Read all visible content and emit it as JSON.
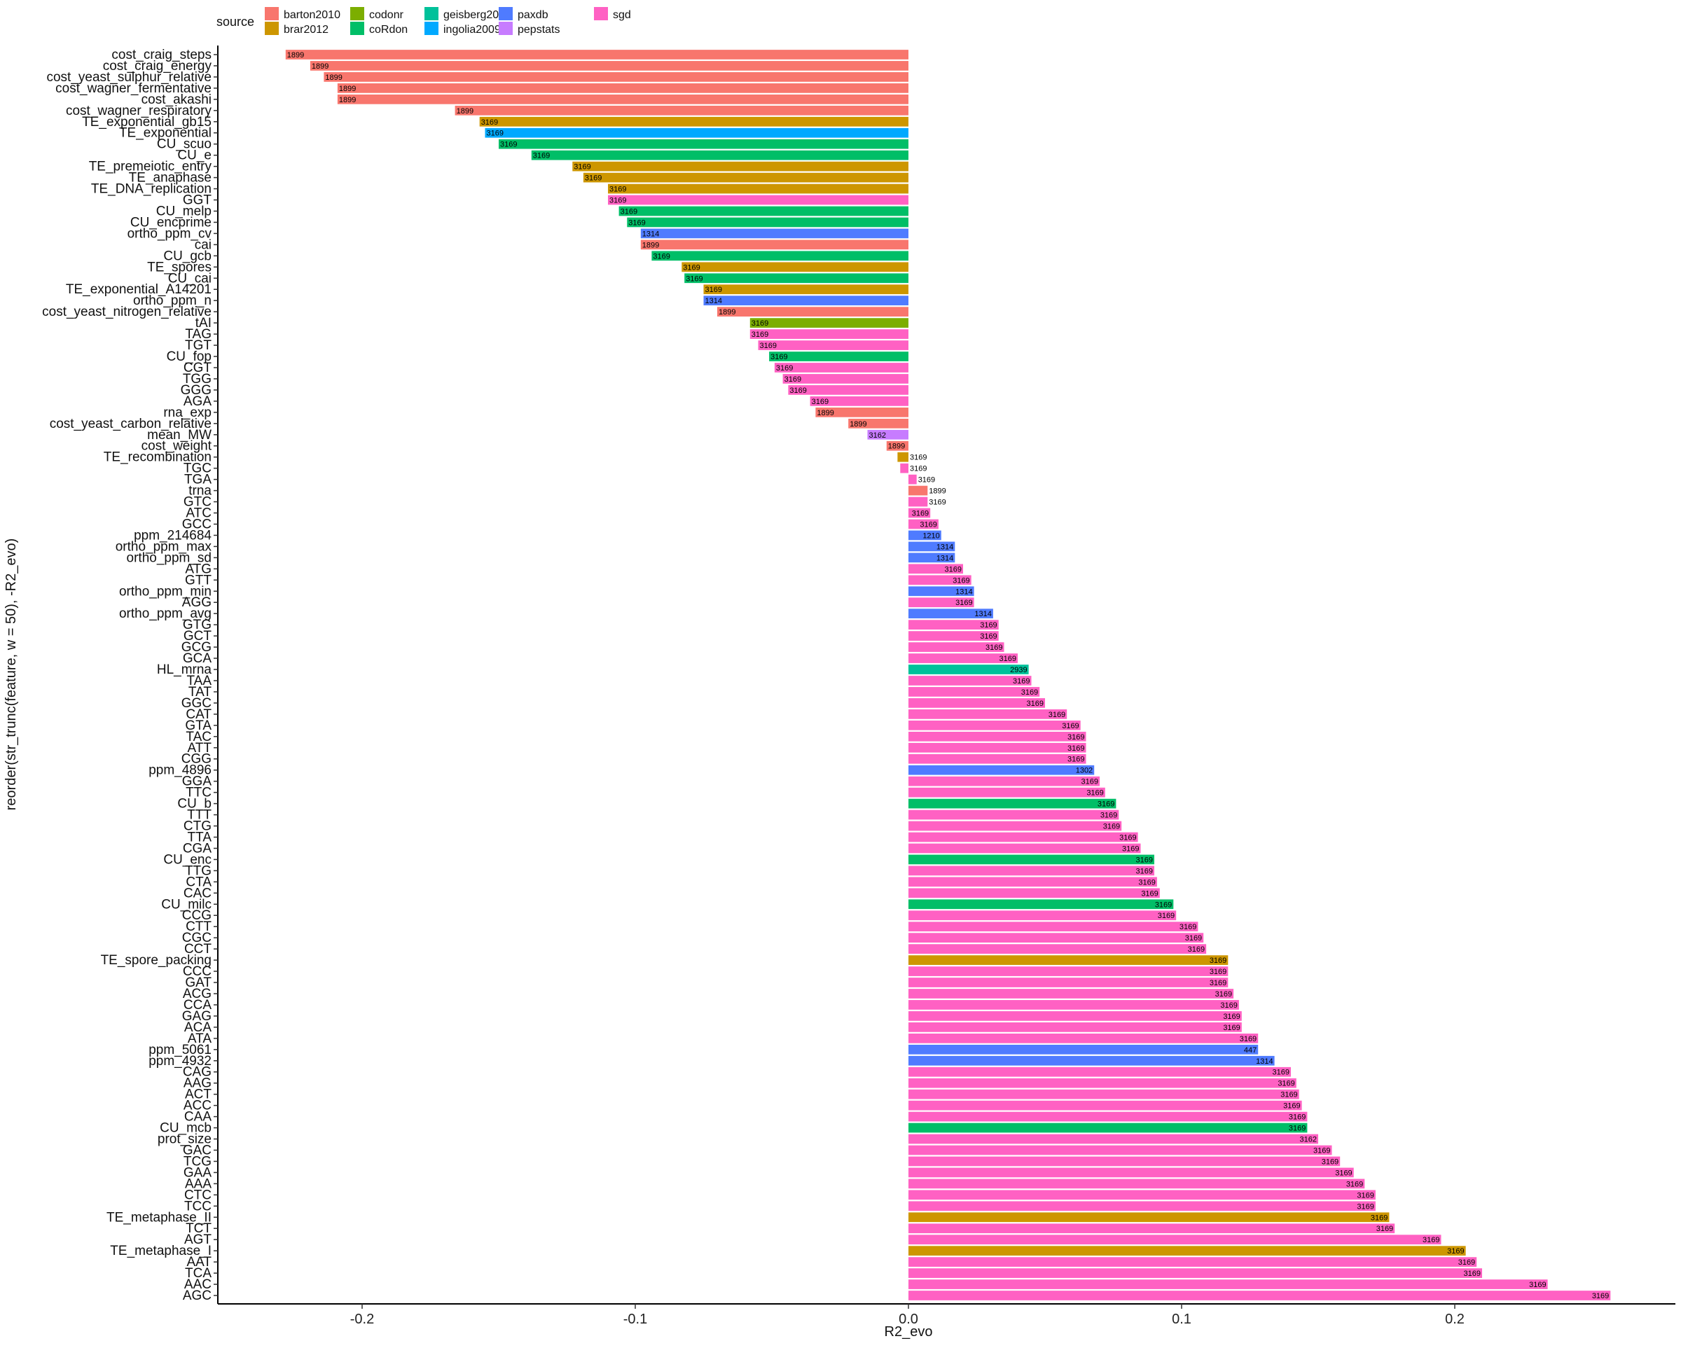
{
  "chart_data": {
    "type": "bar",
    "orientation": "horizontal",
    "xlabel": "R2_evo",
    "ylabel": "reorder(str_trunc(feature, w = 50), -R2_evo)",
    "xlim": [
      -0.25,
      0.28
    ],
    "xticks": [
      -0.2,
      -0.1,
      0.0,
      0.1,
      0.2
    ],
    "xtick_labels": [
      "-0.2",
      "-0.1",
      "0.0",
      "0.1",
      "0.2"
    ],
    "grid": false,
    "legend": {
      "title": "source",
      "position": "top-left",
      "entries": [
        {
          "name": "barton2010",
          "color": "#F8766D"
        },
        {
          "name": "brar2012",
          "color": "#CD9600"
        },
        {
          "name": "codonr",
          "color": "#7CAE00"
        },
        {
          "name": "coRdon",
          "color": "#00BE67"
        },
        {
          "name": "geisberg2014",
          "color": "#00C19A"
        },
        {
          "name": "ingolia2009",
          "color": "#00A9FF"
        },
        {
          "name": "paxdb",
          "color": "#4F7BFF"
        },
        {
          "name": "pepstats",
          "color": "#C77CFF"
        },
        {
          "name": "sgd",
          "color": "#FF61C3"
        }
      ]
    },
    "bars": [
      {
        "feature": "cost_craig_steps",
        "value": -0.228,
        "n": "1899",
        "source": "barton2010"
      },
      {
        "feature": "cost_craig_energy",
        "value": -0.219,
        "n": "1899",
        "source": "barton2010"
      },
      {
        "feature": "cost_yeast_sulphur_relative",
        "value": -0.214,
        "n": "1899",
        "source": "barton2010"
      },
      {
        "feature": "cost_wagner_fermentative",
        "value": -0.209,
        "n": "1899",
        "source": "barton2010"
      },
      {
        "feature": "cost_akashi",
        "value": -0.209,
        "n": "1899",
        "source": "barton2010"
      },
      {
        "feature": "cost_wagner_respiratory",
        "value": -0.166,
        "n": "1899",
        "source": "barton2010"
      },
      {
        "feature": "TE_exponential_gb15",
        "value": -0.157,
        "n": "3169",
        "source": "brar2012"
      },
      {
        "feature": "TE_exponential",
        "value": -0.155,
        "n": "3169",
        "source": "ingolia2009"
      },
      {
        "feature": "CU_scuo",
        "value": -0.15,
        "n": "3169",
        "source": "coRdon"
      },
      {
        "feature": "CU_e",
        "value": -0.138,
        "n": "3169",
        "source": "coRdon"
      },
      {
        "feature": "TE_premeiotic_entry",
        "value": -0.123,
        "n": "3169",
        "source": "brar2012"
      },
      {
        "feature": "TE_anaphase",
        "value": -0.119,
        "n": "3169",
        "source": "brar2012"
      },
      {
        "feature": "TE_DNA_replication",
        "value": -0.11,
        "n": "3169",
        "source": "brar2012"
      },
      {
        "feature": "GGT",
        "value": -0.11,
        "n": "3169",
        "source": "sgd"
      },
      {
        "feature": "CU_melp",
        "value": -0.106,
        "n": "3169",
        "source": "coRdon"
      },
      {
        "feature": "CU_encprime",
        "value": -0.103,
        "n": "3169",
        "source": "coRdon"
      },
      {
        "feature": "ortho_ppm_cv",
        "value": -0.098,
        "n": "1314",
        "source": "paxdb"
      },
      {
        "feature": "cai",
        "value": -0.098,
        "n": "1899",
        "source": "barton2010"
      },
      {
        "feature": "CU_gcb",
        "value": -0.094,
        "n": "3169",
        "source": "coRdon"
      },
      {
        "feature": "TE_spores",
        "value": -0.083,
        "n": "3169",
        "source": "brar2012"
      },
      {
        "feature": "CU_cai",
        "value": -0.082,
        "n": "3169",
        "source": "coRdon"
      },
      {
        "feature": "TE_exponential_A14201",
        "value": -0.075,
        "n": "3169",
        "source": "brar2012"
      },
      {
        "feature": "ortho_ppm_n",
        "value": -0.075,
        "n": "1314",
        "source": "paxdb"
      },
      {
        "feature": "cost_yeast_nitrogen_relative",
        "value": -0.07,
        "n": "1899",
        "source": "barton2010"
      },
      {
        "feature": "tAI",
        "value": -0.058,
        "n": "3169",
        "source": "codonr"
      },
      {
        "feature": "TAG",
        "value": -0.058,
        "n": "3169",
        "source": "sgd"
      },
      {
        "feature": "TGT",
        "value": -0.055,
        "n": "3169",
        "source": "sgd"
      },
      {
        "feature": "CU_fop",
        "value": -0.051,
        "n": "3169",
        "source": "coRdon"
      },
      {
        "feature": "CGT",
        "value": -0.049,
        "n": "3169",
        "source": "sgd"
      },
      {
        "feature": "TGG",
        "value": -0.046,
        "n": "3169",
        "source": "sgd"
      },
      {
        "feature": "GGG",
        "value": -0.044,
        "n": "3169",
        "source": "sgd"
      },
      {
        "feature": "AGA",
        "value": -0.036,
        "n": "3169",
        "source": "sgd"
      },
      {
        "feature": "rna_exp",
        "value": -0.034,
        "n": "1899",
        "source": "barton2010"
      },
      {
        "feature": "cost_yeast_carbon_relative",
        "value": -0.022,
        "n": "1899",
        "source": "barton2010"
      },
      {
        "feature": "mean_MW",
        "value": -0.015,
        "n": "3162",
        "source": "pepstats"
      },
      {
        "feature": "cost_weight",
        "value": -0.008,
        "n": "1899",
        "source": "barton2010"
      },
      {
        "feature": "TE_recombination",
        "value": -0.004,
        "n": "3169",
        "source": "brar2012"
      },
      {
        "feature": "TGC",
        "value": -0.003,
        "n": "3169",
        "source": "sgd"
      },
      {
        "feature": "TGA",
        "value": 0.003,
        "n": "3169",
        "source": "sgd"
      },
      {
        "feature": "trna",
        "value": 0.007,
        "n": "1899",
        "source": "barton2010"
      },
      {
        "feature": "GTC",
        "value": 0.007,
        "n": "3169",
        "source": "sgd"
      },
      {
        "feature": "ATC",
        "value": 0.008,
        "n": "3169",
        "source": "sgd"
      },
      {
        "feature": "GCC",
        "value": 0.011,
        "n": "3169",
        "source": "sgd"
      },
      {
        "feature": "ppm_214684",
        "value": 0.012,
        "n": "1210",
        "source": "paxdb"
      },
      {
        "feature": "ortho_ppm_max",
        "value": 0.017,
        "n": "1314",
        "source": "paxdb"
      },
      {
        "feature": "ortho_ppm_sd",
        "value": 0.017,
        "n": "1314",
        "source": "paxdb"
      },
      {
        "feature": "ATG",
        "value": 0.02,
        "n": "3169",
        "source": "sgd"
      },
      {
        "feature": "GTT",
        "value": 0.023,
        "n": "3169",
        "source": "sgd"
      },
      {
        "feature": "ortho_ppm_min",
        "value": 0.024,
        "n": "1314",
        "source": "paxdb"
      },
      {
        "feature": "AGG",
        "value": 0.024,
        "n": "3169",
        "source": "sgd"
      },
      {
        "feature": "ortho_ppm_avg",
        "value": 0.031,
        "n": "1314",
        "source": "paxdb"
      },
      {
        "feature": "GTG",
        "value": 0.033,
        "n": "3169",
        "source": "sgd"
      },
      {
        "feature": "GCT",
        "value": 0.033,
        "n": "3169",
        "source": "sgd"
      },
      {
        "feature": "GCG",
        "value": 0.035,
        "n": "3169",
        "source": "sgd"
      },
      {
        "feature": "GCA",
        "value": 0.04,
        "n": "3169",
        "source": "sgd"
      },
      {
        "feature": "HL_mrna",
        "value": 0.044,
        "n": "2939",
        "source": "geisberg2014"
      },
      {
        "feature": "TAA",
        "value": 0.045,
        "n": "3169",
        "source": "sgd"
      },
      {
        "feature": "TAT",
        "value": 0.048,
        "n": "3169",
        "source": "sgd"
      },
      {
        "feature": "GGC",
        "value": 0.05,
        "n": "3169",
        "source": "sgd"
      },
      {
        "feature": "CAT",
        "value": 0.058,
        "n": "3169",
        "source": "sgd"
      },
      {
        "feature": "GTA",
        "value": 0.063,
        "n": "3169",
        "source": "sgd"
      },
      {
        "feature": "TAC",
        "value": 0.065,
        "n": "3169",
        "source": "sgd"
      },
      {
        "feature": "ATT",
        "value": 0.065,
        "n": "3169",
        "source": "sgd"
      },
      {
        "feature": "CGG",
        "value": 0.065,
        "n": "3169",
        "source": "sgd"
      },
      {
        "feature": "ppm_4896",
        "value": 0.068,
        "n": "1302",
        "source": "paxdb"
      },
      {
        "feature": "GGA",
        "value": 0.07,
        "n": "3169",
        "source": "sgd"
      },
      {
        "feature": "TTC",
        "value": 0.072,
        "n": "3169",
        "source": "sgd"
      },
      {
        "feature": "CU_b",
        "value": 0.076,
        "n": "3169",
        "source": "coRdon"
      },
      {
        "feature": "TTT",
        "value": 0.077,
        "n": "3169",
        "source": "sgd"
      },
      {
        "feature": "CTG",
        "value": 0.078,
        "n": "3169",
        "source": "sgd"
      },
      {
        "feature": "TTA",
        "value": 0.084,
        "n": "3169",
        "source": "sgd"
      },
      {
        "feature": "CGA",
        "value": 0.085,
        "n": "3169",
        "source": "sgd"
      },
      {
        "feature": "CU_enc",
        "value": 0.09,
        "n": "3169",
        "source": "coRdon"
      },
      {
        "feature": "TTG",
        "value": 0.09,
        "n": "3169",
        "source": "sgd"
      },
      {
        "feature": "CTA",
        "value": 0.091,
        "n": "3169",
        "source": "sgd"
      },
      {
        "feature": "CAC",
        "value": 0.092,
        "n": "3169",
        "source": "sgd"
      },
      {
        "feature": "CU_milc",
        "value": 0.097,
        "n": "3169",
        "source": "coRdon"
      },
      {
        "feature": "CCG",
        "value": 0.098,
        "n": "3169",
        "source": "sgd"
      },
      {
        "feature": "CTT",
        "value": 0.106,
        "n": "3169",
        "source": "sgd"
      },
      {
        "feature": "CGC",
        "value": 0.108,
        "n": "3169",
        "source": "sgd"
      },
      {
        "feature": "CCT",
        "value": 0.109,
        "n": "3169",
        "source": "sgd"
      },
      {
        "feature": "TE_spore_packing",
        "value": 0.117,
        "n": "3169",
        "source": "brar2012"
      },
      {
        "feature": "CCC",
        "value": 0.117,
        "n": "3169",
        "source": "sgd"
      },
      {
        "feature": "GAT",
        "value": 0.117,
        "n": "3169",
        "source": "sgd"
      },
      {
        "feature": "ACG",
        "value": 0.119,
        "n": "3169",
        "source": "sgd"
      },
      {
        "feature": "CCA",
        "value": 0.121,
        "n": "3169",
        "source": "sgd"
      },
      {
        "feature": "GAG",
        "value": 0.122,
        "n": "3169",
        "source": "sgd"
      },
      {
        "feature": "ACA",
        "value": 0.122,
        "n": "3169",
        "source": "sgd"
      },
      {
        "feature": "ATA",
        "value": 0.128,
        "n": "3169",
        "source": "sgd"
      },
      {
        "feature": "ppm_5061",
        "value": 0.128,
        "n": "447",
        "source": "paxdb"
      },
      {
        "feature": "ppm_4932",
        "value": 0.134,
        "n": "1314",
        "source": "paxdb"
      },
      {
        "feature": "CAG",
        "value": 0.14,
        "n": "3169",
        "source": "sgd"
      },
      {
        "feature": "AAG",
        "value": 0.142,
        "n": "3169",
        "source": "sgd"
      },
      {
        "feature": "ACT",
        "value": 0.143,
        "n": "3169",
        "source": "sgd"
      },
      {
        "feature": "ACC",
        "value": 0.144,
        "n": "3169",
        "source": "sgd"
      },
      {
        "feature": "CAA",
        "value": 0.146,
        "n": "3169",
        "source": "sgd"
      },
      {
        "feature": "CU_mcb",
        "value": 0.146,
        "n": "3169",
        "source": "coRdon"
      },
      {
        "feature": "prot_size",
        "value": 0.15,
        "n": "3162",
        "source": "sgd"
      },
      {
        "feature": "GAC",
        "value": 0.155,
        "n": "3169",
        "source": "sgd"
      },
      {
        "feature": "TCG",
        "value": 0.158,
        "n": "3169",
        "source": "sgd"
      },
      {
        "feature": "GAA",
        "value": 0.163,
        "n": "3169",
        "source": "sgd"
      },
      {
        "feature": "AAA",
        "value": 0.167,
        "n": "3169",
        "source": "sgd"
      },
      {
        "feature": "CTC",
        "value": 0.171,
        "n": "3169",
        "source": "sgd"
      },
      {
        "feature": "TCC",
        "value": 0.171,
        "n": "3169",
        "source": "sgd"
      },
      {
        "feature": "TE_metaphase_II",
        "value": 0.176,
        "n": "3169",
        "source": "brar2012"
      },
      {
        "feature": "TCT",
        "value": 0.178,
        "n": "3169",
        "source": "sgd"
      },
      {
        "feature": "AGT",
        "value": 0.195,
        "n": "3169",
        "source": "sgd"
      },
      {
        "feature": "TE_metaphase_I",
        "value": 0.204,
        "n": "3169",
        "source": "brar2012"
      },
      {
        "feature": "AAT",
        "value": 0.208,
        "n": "3169",
        "source": "sgd"
      },
      {
        "feature": "TCA",
        "value": 0.21,
        "n": "3169",
        "source": "sgd"
      },
      {
        "feature": "AAC",
        "value": 0.234,
        "n": "3169",
        "source": "sgd"
      },
      {
        "feature": "AGC",
        "value": 0.257,
        "n": "3169",
        "source": "sgd"
      }
    ]
  }
}
